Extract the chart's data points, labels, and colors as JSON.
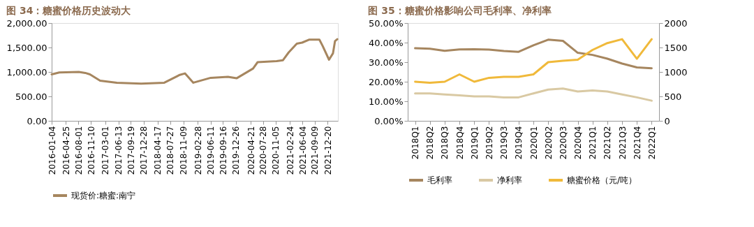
{
  "chart_data": [
    {
      "type": "line",
      "title": "图 34：糖蜜价格历史波动大",
      "xlim": [
        "2016-01-04",
        "2022-03-10"
      ],
      "xticks": [
        "2016-01-04",
        "2016-04-25",
        "2016-08-01",
        "2016-11-10",
        "2017-03-01",
        "2017-06-13",
        "2017-09-19",
        "2017-12-28",
        "2018-04-17",
        "2018-07-27",
        "2018-11-09",
        "2019-02-28",
        "2019-06-11",
        "2019-09-16",
        "2019-12-26",
        "2020-04-21",
        "2020-07-28",
        "2020-11-05",
        "2021-02-24",
        "2021-06-04",
        "2021-09-09",
        "2021-12-20"
      ],
      "ylim": [
        0,
        2000
      ],
      "yticks": [
        {
          "value": 0,
          "label": "0.00"
        },
        {
          "value": 500,
          "label": "500.00"
        },
        {
          "value": 1000,
          "label": "1,000.00"
        },
        {
          "value": 1500,
          "label": "1,500.00"
        },
        {
          "value": 2000,
          "label": "2,000.00"
        }
      ],
      "grid": false,
      "legend": "bottom",
      "series": [
        {
          "name": "现货价:糖蜜:南宁",
          "color": "#a6865f",
          "x": [
            "2016-01-04",
            "2016-03-04",
            "2016-08-05",
            "2016-09-25",
            "2016-11-01",
            "2017-01-20",
            "2017-06-01",
            "2017-12-10",
            "2018-06-10",
            "2018-10-10",
            "2018-11-20",
            "2019-01-25",
            "2019-06-11",
            "2019-10-25",
            "2020-01-01",
            "2020-05-10",
            "2020-06-15",
            "2020-11-12",
            "2021-01-01",
            "2021-02-15",
            "2021-04-20",
            "2021-06-01",
            "2021-07-25",
            "2021-10-15",
            "2021-11-10",
            "2021-12-30",
            "2022-01-30",
            "2022-02-15",
            "2022-03-05"
          ],
          "values": [
            950,
            990,
            1000,
            980,
            950,
            820,
            780,
            760,
            780,
            940,
            970,
            780,
            880,
            900,
            870,
            1070,
            1200,
            1220,
            1240,
            1400,
            1580,
            1600,
            1660,
            1660,
            1530,
            1250,
            1380,
            1630,
            1670
          ]
        }
      ]
    },
    {
      "type": "line",
      "title": "图 35：糖蜜价格影响公司毛利率、净利率",
      "categories": [
        "2018Q1",
        "2018Q2",
        "2018Q3",
        "2018Q4",
        "2019Q1",
        "2019Q2",
        "2019Q3",
        "2019Q4",
        "2020Q1",
        "2020Q2",
        "2020Q3",
        "2020Q4",
        "2021Q1",
        "2021Q2",
        "2021Q3",
        "2021Q4",
        "2022Q1"
      ],
      "ylim": [
        0,
        50
      ],
      "yticks": [
        {
          "value": 0,
          "label": "0.00%"
        },
        {
          "value": 10,
          "label": "10.00%"
        },
        {
          "value": 20,
          "label": "20.00%"
        },
        {
          "value": 30,
          "label": "30.00%"
        },
        {
          "value": 40,
          "label": "40.00%"
        },
        {
          "value": 50,
          "label": "50.00%"
        }
      ],
      "y2lim": [
        0,
        2000
      ],
      "y2ticks": [
        0,
        500,
        1000,
        1500,
        2000
      ],
      "grid": false,
      "legend": "bottom",
      "series": [
        {
          "name": "毛利率",
          "color": "#a6865f",
          "values": [
            37.1,
            36.9,
            35.8,
            36.5,
            36.6,
            36.4,
            35.7,
            35.3,
            38.6,
            41.5,
            40.9,
            34.8,
            33.7,
            31.8,
            29.3,
            27.3,
            26.9
          ]
        },
        {
          "name": "净利率",
          "color": "#d9c9a3",
          "values": [
            14,
            14,
            13.5,
            13,
            12.5,
            12.5,
            12,
            12,
            14,
            16,
            16.5,
            15,
            15.5,
            15,
            13.5,
            12,
            10.3
          ]
        },
        {
          "name": "糖蜜价格（元/吨）",
          "color": "#f0b93a",
          "axis": "y2",
          "values": [
            800,
            780,
            800,
            950,
            800,
            880,
            900,
            900,
            950,
            1200,
            1230,
            1250,
            1450,
            1590,
            1670,
            1270,
            1670
          ]
        }
      ]
    }
  ]
}
